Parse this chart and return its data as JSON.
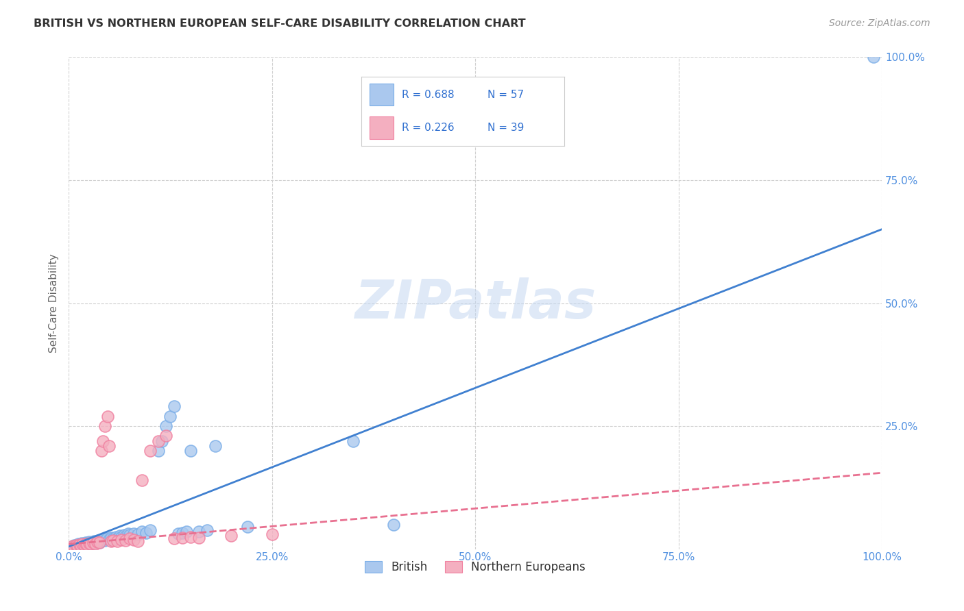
{
  "title": "BRITISH VS NORTHERN EUROPEAN SELF-CARE DISABILITY CORRELATION CHART",
  "source": "Source: ZipAtlas.com",
  "ylabel": "Self-Care Disability",
  "xlim": [
    0,
    1.0
  ],
  "ylim": [
    0,
    1.0
  ],
  "xtick_vals": [
    0.0,
    0.25,
    0.5,
    0.75,
    1.0
  ],
  "xtick_labels": [
    "0.0%",
    "25.0%",
    "50.0%",
    "75.0%",
    "100.0%"
  ],
  "ytick_vals": [
    0.25,
    0.5,
    0.75,
    1.0
  ],
  "ytick_labels": [
    "25.0%",
    "50.0%",
    "75.0%",
    "100.0%"
  ],
  "british_color": "#aac8ee",
  "northern_color": "#f4afc0",
  "british_edge_color": "#7aaee8",
  "northern_edge_color": "#f080a0",
  "british_line_color": "#4080d0",
  "northern_line_color": "#e87090",
  "R_british": 0.688,
  "N_british": 57,
  "R_northern": 0.226,
  "N_northern": 39,
  "legend_label_british": "British",
  "legend_label_northern": "Northern Europeans",
  "watermark": "ZIPatlas",
  "background_color": "#ffffff",
  "grid_color": "#d0d0d0",
  "title_color": "#333333",
  "axis_label_color": "#666666",
  "tick_color_right": "#5090e0",
  "legend_text_color": "#3070d0",
  "brit_line_x0": 0.0,
  "brit_line_x1": 1.0,
  "brit_line_y0": 0.005,
  "brit_line_y1": 0.65,
  "north_line_x0": 0.0,
  "north_line_x1": 1.0,
  "north_line_y0": 0.01,
  "north_line_y1": 0.155,
  "british_scatter": [
    [
      0.005,
      0.005
    ],
    [
      0.007,
      0.008
    ],
    [
      0.009,
      0.006
    ],
    [
      0.012,
      0.01
    ],
    [
      0.013,
      0.007
    ],
    [
      0.015,
      0.009
    ],
    [
      0.016,
      0.012
    ],
    [
      0.018,
      0.008
    ],
    [
      0.02,
      0.01
    ],
    [
      0.021,
      0.013
    ],
    [
      0.022,
      0.009
    ],
    [
      0.023,
      0.012
    ],
    [
      0.025,
      0.015
    ],
    [
      0.026,
      0.011
    ],
    [
      0.028,
      0.014
    ],
    [
      0.03,
      0.012
    ],
    [
      0.031,
      0.016
    ],
    [
      0.033,
      0.013
    ],
    [
      0.035,
      0.015
    ],
    [
      0.036,
      0.018
    ],
    [
      0.038,
      0.014
    ],
    [
      0.04,
      0.017
    ],
    [
      0.042,
      0.02
    ],
    [
      0.045,
      0.018
    ],
    [
      0.047,
      0.022
    ],
    [
      0.05,
      0.019
    ],
    [
      0.052,
      0.023
    ],
    [
      0.055,
      0.021
    ],
    [
      0.058,
      0.025
    ],
    [
      0.06,
      0.022
    ],
    [
      0.063,
      0.027
    ],
    [
      0.065,
      0.024
    ],
    [
      0.068,
      0.029
    ],
    [
      0.07,
      0.026
    ],
    [
      0.073,
      0.031
    ],
    [
      0.075,
      0.028
    ],
    [
      0.08,
      0.032
    ],
    [
      0.085,
      0.03
    ],
    [
      0.09,
      0.035
    ],
    [
      0.095,
      0.033
    ],
    [
      0.1,
      0.038
    ],
    [
      0.11,
      0.2
    ],
    [
      0.115,
      0.22
    ],
    [
      0.12,
      0.25
    ],
    [
      0.125,
      0.27
    ],
    [
      0.13,
      0.29
    ],
    [
      0.135,
      0.031
    ],
    [
      0.14,
      0.033
    ],
    [
      0.145,
      0.036
    ],
    [
      0.15,
      0.2
    ],
    [
      0.16,
      0.035
    ],
    [
      0.17,
      0.038
    ],
    [
      0.18,
      0.21
    ],
    [
      0.22,
      0.045
    ],
    [
      0.35,
      0.22
    ],
    [
      0.4,
      0.05
    ],
    [
      0.99,
      1.0
    ]
  ],
  "northern_scatter": [
    [
      0.005,
      0.006
    ],
    [
      0.007,
      0.005
    ],
    [
      0.009,
      0.008
    ],
    [
      0.011,
      0.006
    ],
    [
      0.013,
      0.009
    ],
    [
      0.015,
      0.007
    ],
    [
      0.017,
      0.01
    ],
    [
      0.019,
      0.008
    ],
    [
      0.021,
      0.011
    ],
    [
      0.023,
      0.009
    ],
    [
      0.025,
      0.012
    ],
    [
      0.027,
      0.01
    ],
    [
      0.03,
      0.013
    ],
    [
      0.033,
      0.011
    ],
    [
      0.035,
      0.015
    ],
    [
      0.038,
      0.013
    ],
    [
      0.04,
      0.2
    ],
    [
      0.042,
      0.22
    ],
    [
      0.045,
      0.25
    ],
    [
      0.048,
      0.27
    ],
    [
      0.05,
      0.21
    ],
    [
      0.052,
      0.016
    ],
    [
      0.055,
      0.018
    ],
    [
      0.06,
      0.016
    ],
    [
      0.065,
      0.019
    ],
    [
      0.07,
      0.017
    ],
    [
      0.075,
      0.021
    ],
    [
      0.08,
      0.019
    ],
    [
      0.085,
      0.016
    ],
    [
      0.09,
      0.14
    ],
    [
      0.1,
      0.2
    ],
    [
      0.11,
      0.22
    ],
    [
      0.12,
      0.23
    ],
    [
      0.13,
      0.021
    ],
    [
      0.14,
      0.023
    ],
    [
      0.15,
      0.025
    ],
    [
      0.16,
      0.023
    ],
    [
      0.2,
      0.027
    ],
    [
      0.25,
      0.03
    ]
  ]
}
